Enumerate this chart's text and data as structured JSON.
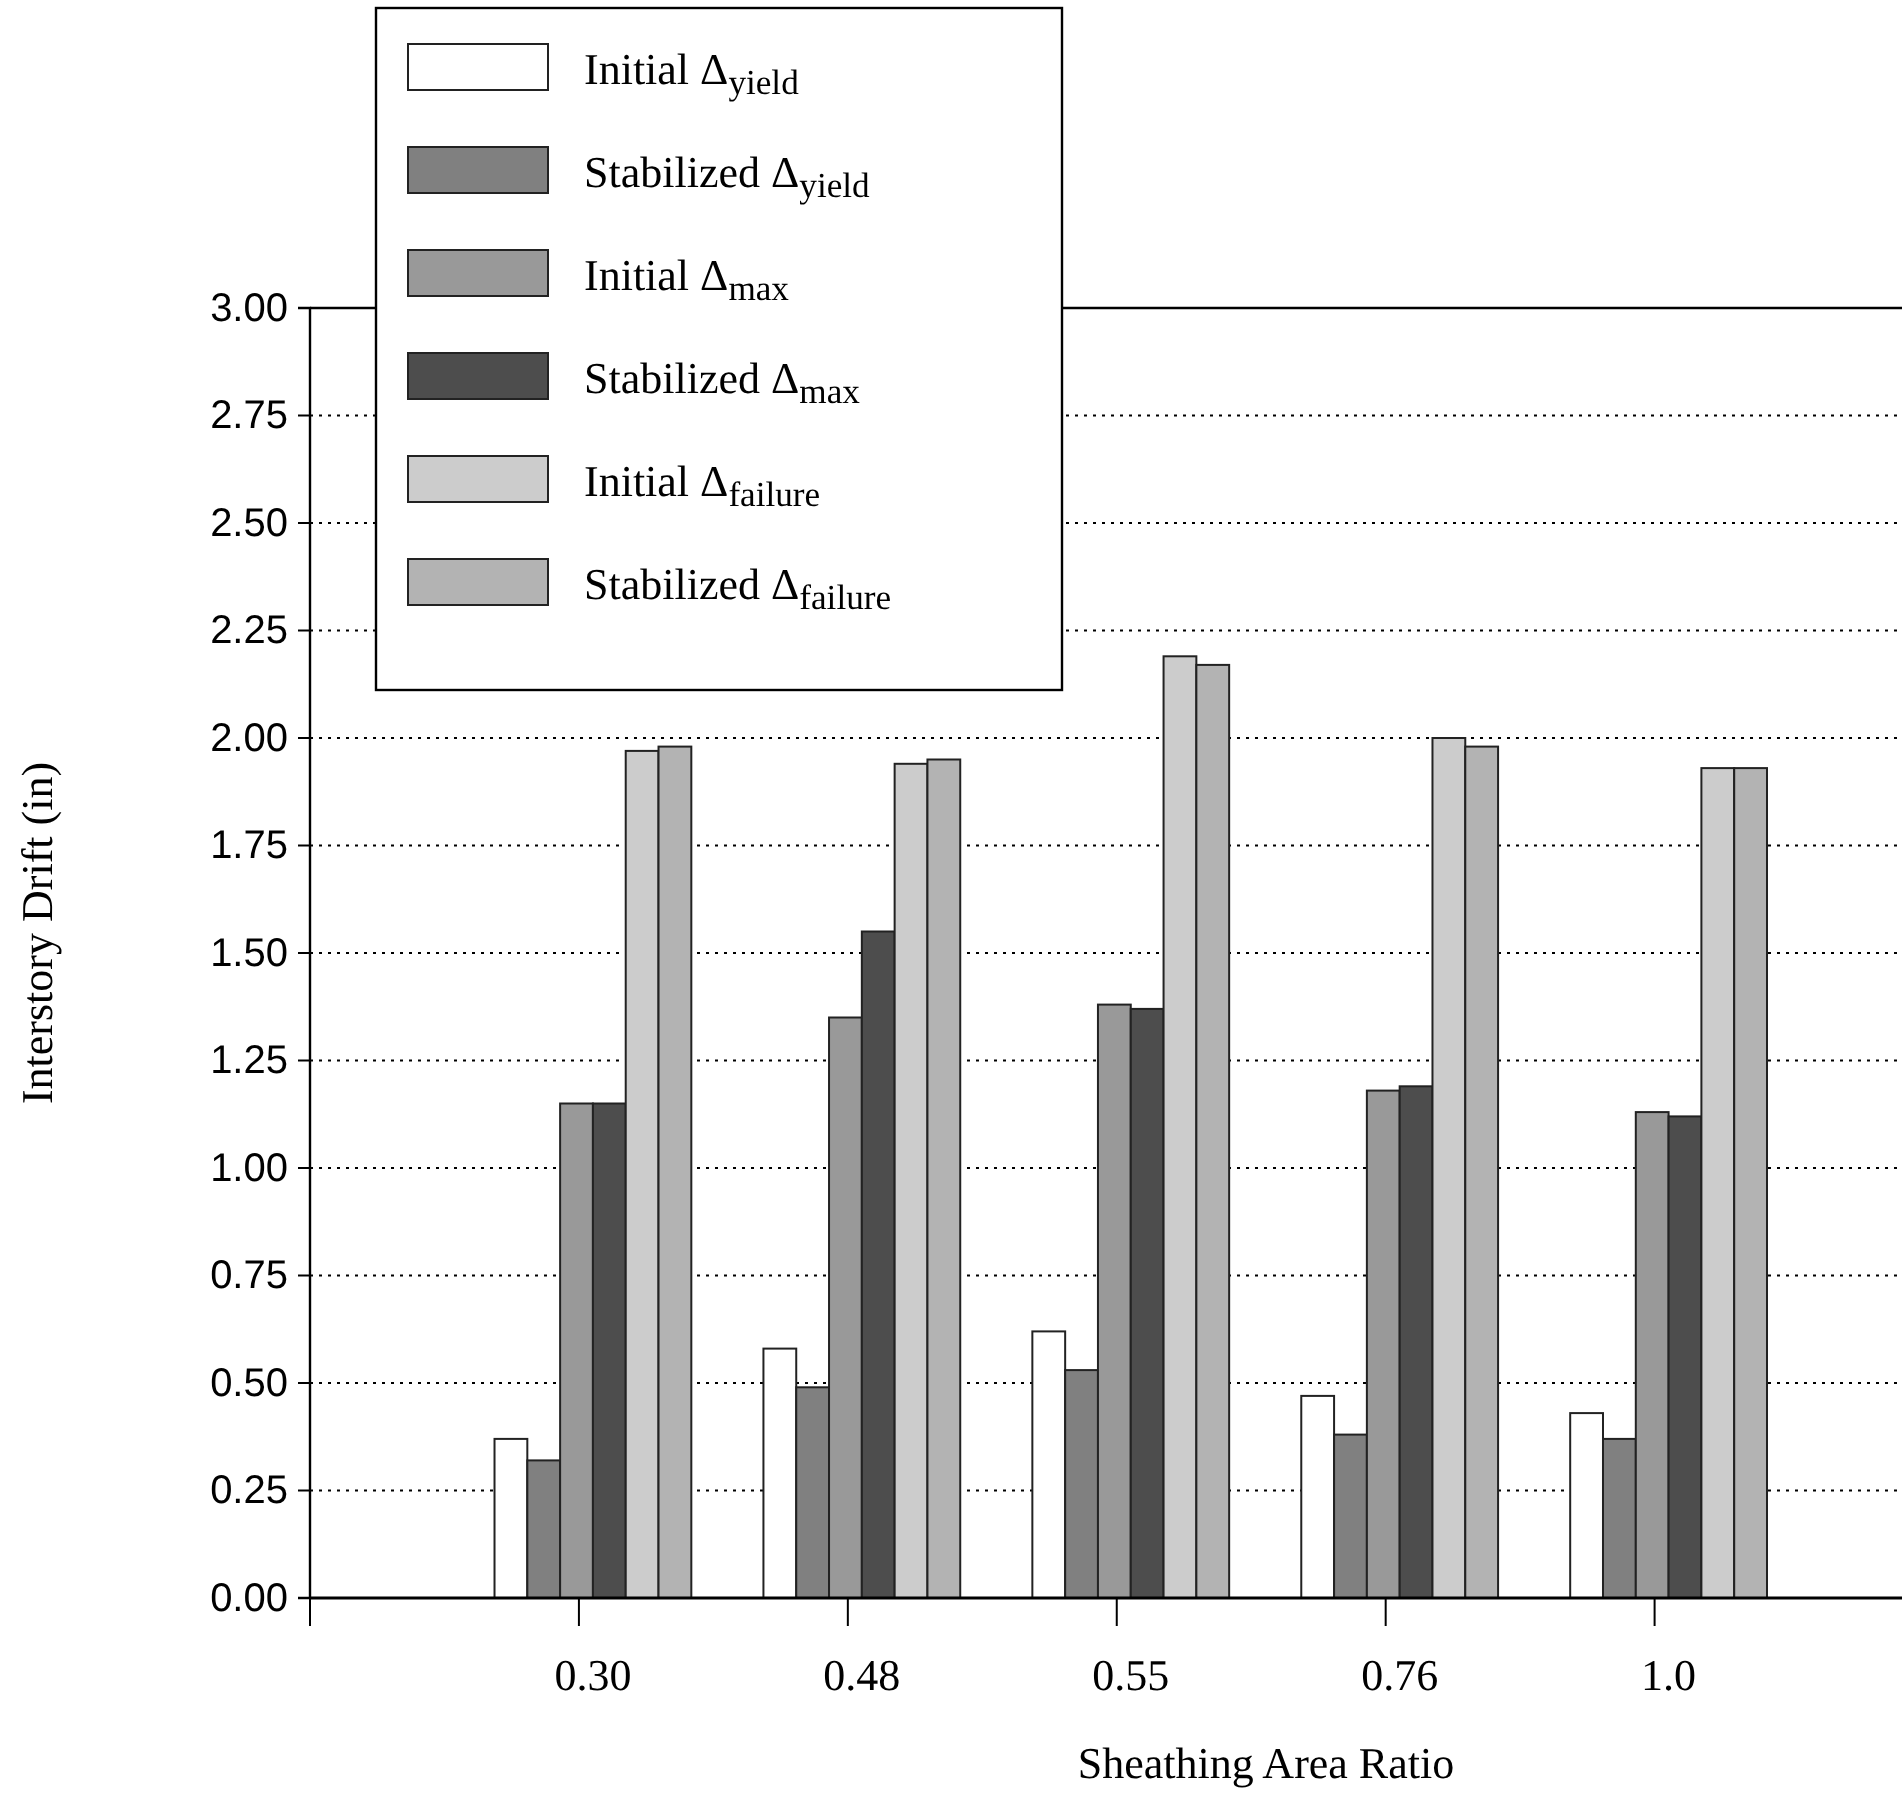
{
  "chart_data": {
    "type": "bar",
    "xlabel": "Sheathing Area Ratio",
    "ylabel": "Interstory Drift (in)",
    "categories": [
      "0.30",
      "0.48",
      "0.55",
      "0.76",
      "1.0"
    ],
    "series": [
      {
        "name": "Initial Δ$_{yield}$",
        "color": "#ffffff",
        "values": [
          0.37,
          0.58,
          0.62,
          0.47,
          0.43
        ]
      },
      {
        "name": "Stabilized Δ$_{yield}$",
        "color": "#808080",
        "values": [
          0.32,
          0.49,
          0.53,
          0.38,
          0.37
        ]
      },
      {
        "name": "Initial Δ$_{max}$",
        "color": "#999999",
        "values": [
          1.15,
          1.35,
          1.38,
          1.18,
          1.13
        ]
      },
      {
        "name": "Stabilized Δ$_{max}$",
        "color": "#4d4d4d",
        "values": [
          1.15,
          1.55,
          1.37,
          1.19,
          1.12
        ]
      },
      {
        "name": "Initial Δ$_{failure}$",
        "color": "#cccccc",
        "values": [
          1.97,
          1.94,
          2.19,
          2.0,
          1.93
        ]
      },
      {
        "name": "Stabilized Δ$_{failure}$",
        "color": "#b3b3b3",
        "values": [
          1.98,
          1.95,
          2.17,
          1.98,
          1.93
        ]
      }
    ],
    "ylim": [
      0,
      3
    ],
    "yticks": [
      {
        "value": 0,
        "label": "0.00"
      },
      {
        "value": 0.25,
        "label": "0.25"
      },
      {
        "value": 0.5,
        "label": "0.50"
      },
      {
        "value": 0.75,
        "label": "0.75"
      },
      {
        "value": 1,
        "label": "1.00"
      },
      {
        "value": 1.25,
        "label": "1.25"
      },
      {
        "value": 1.5,
        "label": "1.50"
      },
      {
        "value": 1.75,
        "label": "1.75"
      },
      {
        "value": 2,
        "label": "2.00"
      },
      {
        "value": 2.25,
        "label": "2.25"
      },
      {
        "value": 2.5,
        "label": "2.50"
      },
      {
        "value": 2.75,
        "label": "2.75"
      },
      {
        "value": 3,
        "label": "3.00"
      }
    ],
    "grid": "y",
    "legend": "top left"
  }
}
